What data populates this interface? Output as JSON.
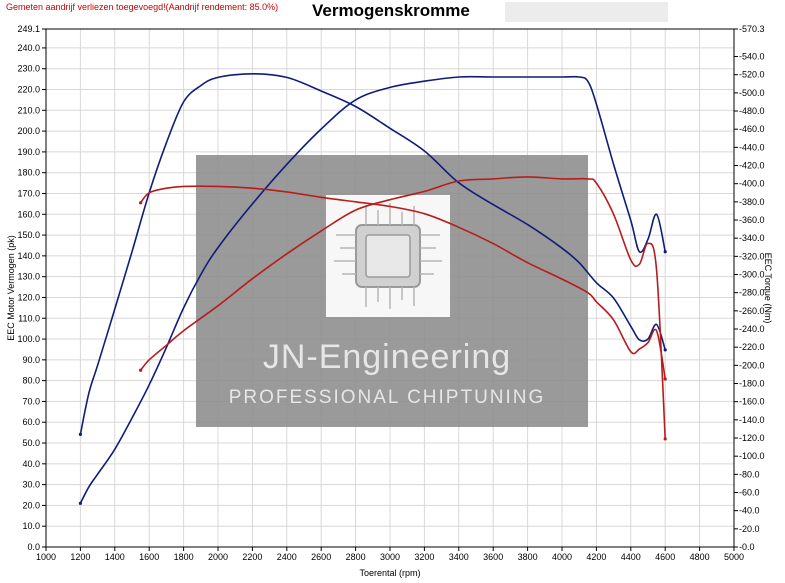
{
  "header": {
    "warning": "Gemeten aandrijf verliezen toegevoegd!(Aandrijf rendement: 85.0%)",
    "title": "Vermogenskromme"
  },
  "watermark": {
    "line1": "JN-Engineering",
    "line2": "PROFESSIONAL CHIPTUNING"
  },
  "colors": {
    "stock": "#b81c1c",
    "tuned": "#101c7a",
    "grid": "#d8d8d8",
    "watermark_bg": "#8c8c8c"
  },
  "chart_data": {
    "type": "line",
    "xlabel": "Toerental (rpm)",
    "ylabel_left": "EEC Motor Vermogen (pk)",
    "ylabel_right": "EEC Torque (Nm)",
    "xlim": [
      1000,
      5000
    ],
    "ylim_left": [
      0,
      249.1
    ],
    "ylim_right": [
      0,
      570.3
    ],
    "x_ticks": [
      1000,
      1200,
      1400,
      1600,
      1800,
      2000,
      2200,
      2400,
      2600,
      2800,
      3000,
      3200,
      3400,
      3600,
      3800,
      4000,
      4200,
      4400,
      4600,
      4800,
      5000
    ],
    "y_left_ticks": [
      "0.0",
      "10.0",
      "20.0",
      "30.0",
      "40.0",
      "50.0",
      "60.0",
      "70.0",
      "80.0",
      "90.0",
      "100.0",
      "110.0",
      "120.0",
      "130.0",
      "140.0",
      "150.0",
      "160.0",
      "170.0",
      "180.0",
      "190.0",
      "200.0",
      "210.0",
      "220.0",
      "230.0",
      "240.0",
      "249.1"
    ],
    "y_right_ticks": [
      "0.0",
      "20.0",
      "40.0",
      "60.0",
      "80.0",
      "100.0",
      "120.0",
      "140.0",
      "160.0",
      "180.0",
      "200.0",
      "220.0",
      "240.0",
      "260.0",
      "280.0",
      "300.0",
      "320.0",
      "340.0",
      "360.0",
      "380.0",
      "400.0",
      "420.0",
      "440.0",
      "460.0",
      "480.0",
      "500.0",
      "520.0",
      "540.0",
      "570.3"
    ],
    "grid": true,
    "series": [
      {
        "kind": "tuned-power",
        "axis": "left",
        "x": [
          1200,
          1250,
          1300,
          1400,
          1500,
          1600,
          1700,
          1800,
          1900,
          2000,
          2200,
          2400,
          2600,
          2800,
          3000,
          3200,
          3400,
          3600,
          3800,
          4000,
          4100,
          4150,
          4200,
          4300,
          4400,
          4450,
          4500,
          4550,
          4600
        ],
        "y": [
          21,
          29,
          35,
          47,
          62,
          78,
          96,
          115,
          131,
          144,
          165,
          184,
          201,
          215,
          221,
          224,
          226,
          226,
          226,
          226,
          226,
          224,
          213,
          184,
          157,
          142,
          148,
          160,
          142
        ]
      },
      {
        "kind": "tuned-torque",
        "axis": "right",
        "x": [
          1200,
          1250,
          1300,
          1400,
          1500,
          1600,
          1700,
          1800,
          1900,
          2000,
          2200,
          2400,
          2600,
          2800,
          3000,
          3200,
          3400,
          3600,
          3800,
          4000,
          4100,
          4200,
          4300,
          4400,
          4450,
          4500,
          4550,
          4600
        ],
        "y": [
          124,
          170,
          200,
          262,
          325,
          390,
          445,
          490,
          508,
          517,
          521,
          517,
          502,
          485,
          461,
          436,
          401,
          377,
          355,
          329,
          313,
          291,
          274,
          243,
          228,
          229,
          245,
          217
        ]
      },
      {
        "kind": "stock-power",
        "axis": "left",
        "x": [
          1550,
          1600,
          1700,
          1800,
          2000,
          2200,
          2400,
          2600,
          2800,
          3000,
          3200,
          3400,
          3600,
          3800,
          4000,
          4150,
          4200,
          4300,
          4400,
          4450,
          4500,
          4550,
          4600
        ],
        "y": [
          85,
          90,
          97,
          104,
          116,
          129,
          141,
          152,
          162,
          167,
          171,
          176,
          177,
          178,
          177,
          177,
          175,
          160,
          138,
          136,
          146,
          133,
          52
        ]
      },
      {
        "kind": "stock-torque",
        "axis": "right",
        "x": [
          1550,
          1600,
          1700,
          1800,
          2000,
          2200,
          2400,
          2600,
          2800,
          3000,
          3200,
          3400,
          3600,
          3800,
          4000,
          4150,
          4200,
          4300,
          4400,
          4450,
          4500,
          4550,
          4600
        ],
        "y": [
          379,
          390,
          395,
          397,
          397,
          395,
          391,
          385,
          380,
          375,
          367,
          352,
          334,
          313,
          295,
          280,
          270,
          250,
          215,
          218,
          225,
          238,
          185
        ]
      }
    ]
  }
}
